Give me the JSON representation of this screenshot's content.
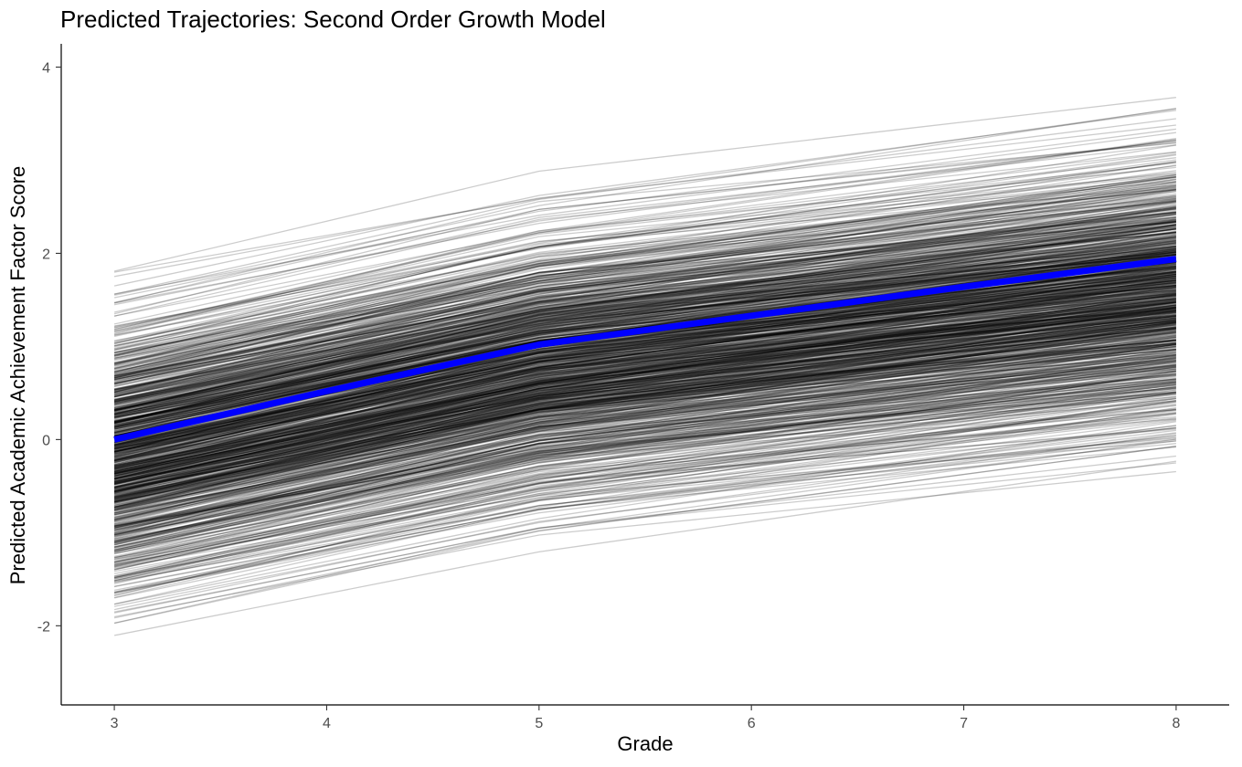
{
  "chart_data": {
    "type": "line",
    "title": "Predicted Trajectories: Second Order Growth Model",
    "xlabel": "Grade",
    "ylabel": "Predicted Academic Achievement Factor Score",
    "x": [
      3,
      4,
      5,
      6,
      7,
      8
    ],
    "xlim": [
      2.75,
      8.25
    ],
    "ylim": [
      -2.85,
      4.25
    ],
    "xticks": [
      3,
      4,
      5,
      6,
      7,
      8
    ],
    "yticks": [
      -2,
      0,
      2,
      4
    ],
    "grid": false,
    "legend": "none",
    "series": [
      {
        "role": "mean",
        "color": "#0000ff",
        "x": [
          3,
          4,
          5,
          6,
          7,
          8
        ],
        "values": [
          0.0,
          0.52,
          1.02,
          1.33,
          1.64,
          1.94
        ]
      }
    ],
    "individual_trajectories": {
      "color": "#000000",
      "alpha": 0.2,
      "count": 1000,
      "range_at_grade_3": [
        -2.55,
        2.18
      ],
      "range_at_grade_5": [
        -1.58,
        3.12
      ],
      "range_at_grade_8": [
        -0.8,
        3.98
      ]
    }
  }
}
